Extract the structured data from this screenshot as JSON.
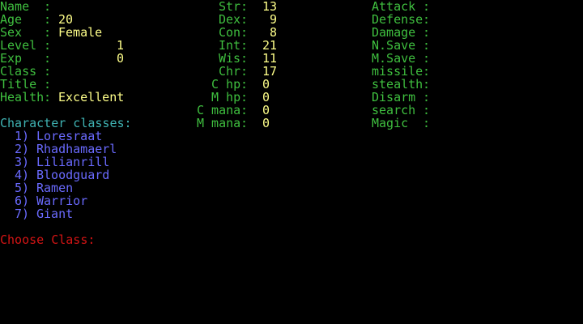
{
  "separator": ":",
  "profile": {
    "name_label": "Name",
    "name_value": "",
    "age_label": "Age",
    "age_value": "20",
    "sex_label": "Sex",
    "sex_value": "Female",
    "level_label": "Level",
    "level_value": "1",
    "exp_label": "Exp",
    "exp_value": "0",
    "class_label": "Class",
    "class_value": "",
    "title_label": "Title",
    "title_value": "",
    "health_label": "Health",
    "health_value": "Excellent"
  },
  "stats": [
    {
      "label": "Str",
      "value": "13"
    },
    {
      "label": "Dex",
      "value": "9"
    },
    {
      "label": "Con",
      "value": "8"
    },
    {
      "label": "Int",
      "value": "21"
    },
    {
      "label": "Wis",
      "value": "11"
    },
    {
      "label": "Chr",
      "value": "17"
    },
    {
      "label": "C hp",
      "value": "0"
    },
    {
      "label": "M hp",
      "value": "0"
    },
    {
      "label": "C mana",
      "value": "0"
    },
    {
      "label": "M mana",
      "value": "0"
    }
  ],
  "abilities": [
    "Attack",
    "Defense",
    "Damage",
    "N.Save",
    "M.Save",
    "missile",
    "stealth",
    "Disarm",
    "search",
    "Magic"
  ],
  "classes_heading": "Character classes:",
  "classes": [
    {
      "key": "1)",
      "name": "Loresraat"
    },
    {
      "key": "2)",
      "name": "Rhadhamaerl"
    },
    {
      "key": "3)",
      "name": "Lilianrill"
    },
    {
      "key": "4)",
      "name": "Bloodguard"
    },
    {
      "key": "5)",
      "name": "Ramen"
    },
    {
      "key": "6)",
      "name": "Warrior"
    },
    {
      "key": "7)",
      "name": "Giant"
    }
  ],
  "prompt": "Choose Class:",
  "colors": {
    "label": "#3fbf3f",
    "value": "#ffff8a",
    "heading": "#3fb3b3",
    "class": "#6a6aff",
    "prompt": "#d41414",
    "background": "#000000"
  }
}
